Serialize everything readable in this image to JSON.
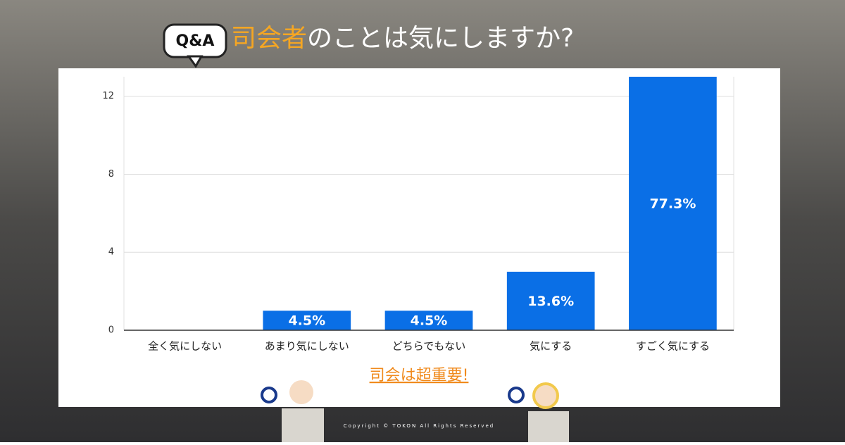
{
  "chart_data": {
    "type": "bar",
    "badge": "Q&A",
    "title_highlight": "司会者",
    "title": "のことは気にしますか?",
    "categories": [
      "全く気にしない",
      "あまり気にしない",
      "どちらでもない",
      "気にする",
      "すごく気にする"
    ],
    "values": [
      0,
      1,
      1,
      3,
      13
    ],
    "data_labels": [
      null,
      "4.5%",
      "4.5%",
      "13.6%",
      "77.3%"
    ],
    "color": "#0a6fe6",
    "ylim": [
      0,
      13
    ],
    "yticks": [
      0,
      4,
      8,
      12
    ],
    "grid": true,
    "annotation": "司会は超重要!",
    "copyright": "Copyright © TOKON All Rights Reserved"
  }
}
